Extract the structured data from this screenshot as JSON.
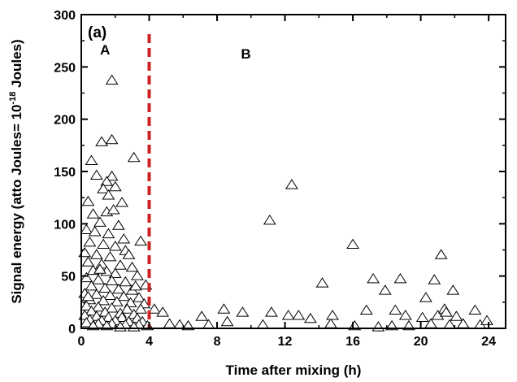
{
  "chart_data": {
    "type": "scatter",
    "panel_label": "(a)",
    "xlabel": "Time after mixing (h)",
    "ylabel_main": "Signal energy (atto Joules= 10",
    "ylabel_exp": "-18",
    "ylabel_tail": " Joules)",
    "xlim": [
      0,
      25
    ],
    "ylim": [
      0,
      300
    ],
    "x_ticks": [
      0,
      4,
      8,
      12,
      16,
      20,
      24
    ],
    "x_tick_labels": [
      "0",
      "4",
      "8",
      "12",
      "16",
      "20",
      "24"
    ],
    "y_ticks": [
      0,
      50,
      100,
      150,
      200,
      250,
      300
    ],
    "y_tick_labels": [
      "0",
      "50",
      "100",
      "150",
      "200",
      "250",
      "300"
    ],
    "grid": false,
    "marker": "open-triangle",
    "divider": {
      "x": 4,
      "color": "#cc2222",
      "style": "dashed"
    },
    "region_labels": [
      {
        "text": "A",
        "x": 1.4,
        "y": 262
      },
      {
        "text": "B",
        "x": 9.7,
        "y": 258
      }
    ],
    "points": [
      [
        1.8,
        237
      ],
      [
        1.2,
        178
      ],
      [
        1.8,
        180
      ],
      [
        3.1,
        163
      ],
      [
        0.6,
        160
      ],
      [
        0.9,
        146
      ],
      [
        1.8,
        145
      ],
      [
        1.5,
        140
      ],
      [
        2.0,
        135
      ],
      [
        1.3,
        133
      ],
      [
        1.6,
        127
      ],
      [
        0.4,
        121
      ],
      [
        2.4,
        120
      ],
      [
        0.7,
        109
      ],
      [
        1.5,
        111
      ],
      [
        1.9,
        113
      ],
      [
        1.1,
        101
      ],
      [
        2.2,
        98
      ],
      [
        0.3,
        94
      ],
      [
        0.8,
        92
      ],
      [
        1.6,
        90
      ],
      [
        3.5,
        83
      ],
      [
        0.5,
        82
      ],
      [
        1.3,
        80
      ],
      [
        2.0,
        78
      ],
      [
        2.6,
        74
      ],
      [
        0.2,
        72
      ],
      [
        0.9,
        70
      ],
      [
        1.7,
        68
      ],
      [
        2.8,
        70
      ],
      [
        0.4,
        63
      ],
      [
        1.2,
        61
      ],
      [
        2.3,
        60
      ],
      [
        3.0,
        58
      ],
      [
        0.7,
        55
      ],
      [
        1.5,
        54
      ],
      [
        2.0,
        52
      ],
      [
        3.3,
        50
      ],
      [
        0.3,
        48
      ],
      [
        1.0,
        46
      ],
      [
        1.8,
        45
      ],
      [
        2.6,
        44
      ],
      [
        3.8,
        41
      ],
      [
        0.6,
        40
      ],
      [
        1.4,
        38
      ],
      [
        2.2,
        37
      ],
      [
        3.0,
        36
      ],
      [
        0.2,
        33
      ],
      [
        0.9,
        32
      ],
      [
        1.7,
        31
      ],
      [
        2.5,
        30
      ],
      [
        3.4,
        29
      ],
      [
        0.5,
        27
      ],
      [
        1.3,
        26
      ],
      [
        2.1,
        25
      ],
      [
        2.9,
        24
      ],
      [
        3.7,
        23
      ],
      [
        0.3,
        21
      ],
      [
        1.0,
        20
      ],
      [
        1.8,
        19
      ],
      [
        2.7,
        18
      ],
      [
        3.5,
        18
      ],
      [
        0.6,
        16
      ],
      [
        1.4,
        15
      ],
      [
        2.3,
        14
      ],
      [
        3.1,
        13
      ],
      [
        0.2,
        12
      ],
      [
        0.9,
        11
      ],
      [
        1.6,
        10
      ],
      [
        2.4,
        10
      ],
      [
        3.3,
        9
      ],
      [
        0.5,
        8
      ],
      [
        1.2,
        7
      ],
      [
        2.0,
        7
      ],
      [
        2.8,
        6
      ],
      [
        3.6,
        6
      ],
      [
        0.3,
        5
      ],
      [
        1.0,
        4
      ],
      [
        1.8,
        4
      ],
      [
        2.6,
        3
      ],
      [
        3.4,
        3
      ],
      [
        0.7,
        2
      ],
      [
        1.5,
        2
      ],
      [
        2.3,
        1
      ],
      [
        3.1,
        1
      ],
      [
        3.9,
        2
      ],
      [
        0.4,
        30
      ],
      [
        1.1,
        56
      ],
      [
        2.5,
        85
      ],
      [
        3.2,
        40
      ],
      [
        4.3,
        18
      ],
      [
        4.8,
        15
      ],
      [
        5.2,
        4
      ],
      [
        5.8,
        3
      ],
      [
        6.3,
        2
      ],
      [
        7.1,
        11
      ],
      [
        7.5,
        3
      ],
      [
        8.4,
        18
      ],
      [
        8.6,
        6
      ],
      [
        9.5,
        15
      ],
      [
        10.7,
        3
      ],
      [
        11.1,
        103
      ],
      [
        11.2,
        15
      ],
      [
        12.2,
        12
      ],
      [
        12.4,
        137
      ],
      [
        12.8,
        12
      ],
      [
        13.5,
        9
      ],
      [
        14.2,
        43
      ],
      [
        14.7,
        4
      ],
      [
        14.8,
        12
      ],
      [
        16.0,
        80
      ],
      [
        16.1,
        2
      ],
      [
        16.8,
        17
      ],
      [
        17.2,
        47
      ],
      [
        17.5,
        1
      ],
      [
        17.9,
        36
      ],
      [
        18.3,
        2
      ],
      [
        18.5,
        17
      ],
      [
        18.8,
        47
      ],
      [
        19.1,
        12
      ],
      [
        19.3,
        2
      ],
      [
        20.1,
        10
      ],
      [
        20.3,
        29
      ],
      [
        20.6,
        4
      ],
      [
        20.8,
        46
      ],
      [
        21.0,
        12
      ],
      [
        21.2,
        70
      ],
      [
        21.4,
        18
      ],
      [
        21.5,
        15
      ],
      [
        21.7,
        3
      ],
      [
        21.9,
        36
      ],
      [
        22.1,
        11
      ],
      [
        22.5,
        4
      ],
      [
        23.2,
        17
      ],
      [
        23.5,
        3
      ],
      [
        23.9,
        7
      ]
    ]
  }
}
